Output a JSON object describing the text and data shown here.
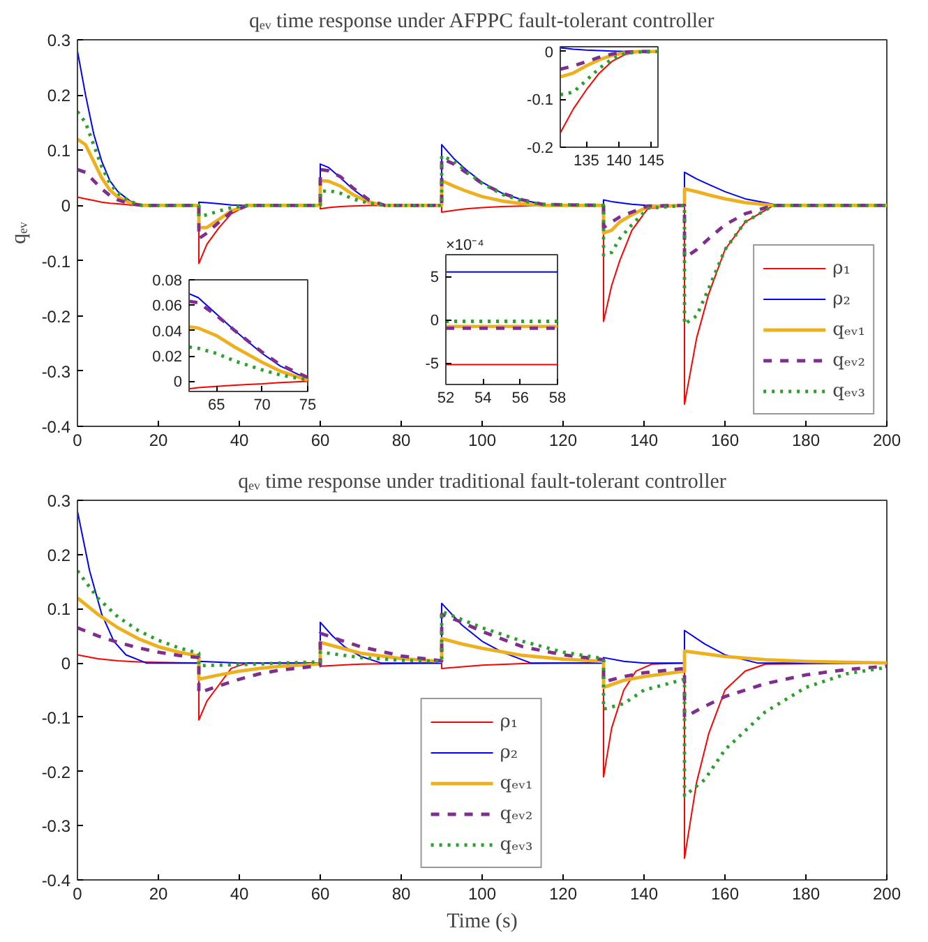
{
  "chart_data": [
    {
      "type": "line",
      "title": "qₑᵥ time response under AFPPC fault-tolerant controller",
      "ylabel": "qₑᵥ",
      "xlim": [
        0,
        200
      ],
      "ylim": [
        -0.4,
        0.3
      ],
      "xticks": [
        0,
        20,
        40,
        60,
        80,
        100,
        120,
        140,
        160,
        180,
        200
      ],
      "yticks": [
        -0.4,
        -0.3,
        -0.2,
        -0.1,
        0,
        0.1,
        0.2,
        0.3
      ],
      "legend": "bottom right",
      "x": [
        0,
        2,
        4,
        6,
        8,
        10,
        13,
        16,
        30,
        30,
        32,
        35,
        38,
        42,
        60,
        60,
        62,
        65,
        68,
        72,
        76,
        90,
        90,
        93,
        96,
        100,
        105,
        110,
        115,
        130,
        130,
        132,
        134,
        137,
        141,
        150,
        150,
        153,
        156,
        160,
        165,
        172,
        200
      ],
      "series": [
        {
          "name": "ρ₁",
          "color": "#ff0000",
          "line_style": "solid",
          "values": [
            0.015,
            0.012,
            0.009,
            0.006,
            0.004,
            0.003,
            0.001,
            0,
            0,
            -0.105,
            -0.07,
            -0.04,
            -0.015,
            0,
            0,
            -0.006,
            -0.004,
            -0.002,
            -0.001,
            0,
            0,
            0,
            -0.012,
            -0.009,
            -0.006,
            -0.004,
            -0.002,
            -0.001,
            0,
            0,
            -0.21,
            -0.145,
            -0.1,
            -0.045,
            -0.005,
            0,
            -0.36,
            -0.24,
            -0.16,
            -0.08,
            -0.03,
            0,
            0
          ]
        },
        {
          "name": "ρ₂",
          "color": "#0000ff",
          "line_style": "solid",
          "values": [
            0.28,
            0.2,
            0.13,
            0.08,
            0.045,
            0.025,
            0.008,
            0,
            0,
            0.006,
            0.005,
            0.003,
            0.001,
            0,
            0,
            0.075,
            0.069,
            0.05,
            0.03,
            0.008,
            0,
            0,
            0.11,
            0.085,
            0.065,
            0.042,
            0.022,
            0.01,
            0.002,
            0,
            0.01,
            0.007,
            0.005,
            0.002,
            0,
            0,
            0.06,
            0.048,
            0.038,
            0.025,
            0.012,
            0.002,
            0
          ]
        },
        {
          "name": "qₑᵥ₁",
          "color": "#edb120",
          "line_style": "solid",
          "values": [
            0.12,
            0.11,
            0.08,
            0.05,
            0.028,
            0.015,
            0.005,
            0,
            0,
            -0.04,
            -0.04,
            -0.025,
            -0.01,
            0,
            0,
            0.045,
            0.044,
            0.035,
            0.02,
            0.006,
            0,
            0,
            0.045,
            0.035,
            0.026,
            0.016,
            0.008,
            0.003,
            0,
            0,
            -0.05,
            -0.045,
            -0.03,
            -0.017,
            -0.002,
            0,
            0.03,
            0.025,
            0.019,
            0.012,
            0.005,
            0,
            0
          ]
        },
        {
          "name": "qₑᵥ₂",
          "color": "#7e2f8e",
          "line_style": "dashed",
          "values": [
            0.065,
            0.06,
            0.045,
            0.03,
            0.018,
            0.01,
            0.003,
            0,
            0,
            -0.06,
            -0.05,
            -0.03,
            -0.012,
            0,
            0,
            0.065,
            0.063,
            0.052,
            0.032,
            0.01,
            0,
            0,
            0.085,
            0.075,
            0.06,
            0.04,
            0.022,
            0.01,
            0.002,
            0,
            -0.04,
            -0.03,
            -0.021,
            -0.012,
            -0.001,
            0,
            -0.095,
            -0.08,
            -0.06,
            -0.035,
            -0.015,
            0,
            0
          ]
        },
        {
          "name": "qₑᵥ₃",
          "color": "#2ca02c",
          "line_style": "dotted",
          "values": [
            0.17,
            0.15,
            0.11,
            0.07,
            0.04,
            0.022,
            0.007,
            0,
            0,
            -0.02,
            -0.017,
            -0.01,
            -0.004,
            0,
            0,
            0.025,
            0.027,
            0.022,
            0.012,
            0.004,
            0,
            0,
            0.09,
            0.08,
            0.062,
            0.04,
            0.02,
            0.008,
            0.002,
            0,
            -0.09,
            -0.085,
            -0.06,
            -0.035,
            -0.005,
            0,
            -0.215,
            -0.2,
            -0.15,
            -0.08,
            -0.03,
            0,
            0
          ]
        }
      ]
    },
    {
      "type": "line",
      "xlim": [
        62,
        75
      ],
      "ylim": [
        -0.008,
        0.08
      ],
      "xticks": [
        65,
        70,
        75
      ],
      "yticks": [
        0,
        0.02,
        0.04,
        0.06,
        0.08
      ],
      "x": [
        62,
        63,
        65,
        67,
        70,
        72,
        75
      ],
      "series": [
        {
          "color": "#ff0000",
          "line_style": "solid",
          "values": [
            -0.006,
            -0.005,
            -0.004,
            -0.003,
            -0.002,
            -0.001,
            0
          ]
        },
        {
          "color": "#0000ff",
          "line_style": "solid",
          "values": [
            0.069,
            0.066,
            0.053,
            0.04,
            0.022,
            0.012,
            0.002
          ]
        },
        {
          "color": "#edb120",
          "line_style": "solid",
          "values": [
            0.043,
            0.042,
            0.036,
            0.027,
            0.015,
            0.008,
            0.001
          ]
        },
        {
          "color": "#7e2f8e",
          "line_style": "dashed",
          "values": [
            0.063,
            0.062,
            0.052,
            0.04,
            0.023,
            0.013,
            0.003
          ]
        },
        {
          "color": "#2ca02c",
          "line_style": "dotted",
          "values": [
            0.027,
            0.026,
            0.022,
            0.016,
            0.009,
            0.005,
            0.001
          ]
        }
      ]
    },
    {
      "type": "line",
      "xlim": [
        52,
        58
      ],
      "ylim": [
        -7.5,
        7.5
      ],
      "xticks": [
        52,
        54,
        56,
        58
      ],
      "yticks": [
        -5,
        0,
        5
      ],
      "annotations": [
        "×10⁻⁴"
      ],
      "x": [
        52,
        58
      ],
      "series": [
        {
          "color": "#ff0000",
          "line_style": "solid",
          "values": [
            -5.2,
            -5.2
          ]
        },
        {
          "color": "#0000ff",
          "line_style": "solid",
          "values": [
            5.5,
            5.5
          ]
        },
        {
          "color": "#edb120",
          "line_style": "solid",
          "values": [
            -0.8,
            -0.8
          ]
        },
        {
          "color": "#7e2f8e",
          "line_style": "dashed",
          "values": [
            -1.0,
            -1.0
          ]
        },
        {
          "color": "#2ca02c",
          "line_style": "dotted",
          "values": [
            -0.2,
            -0.2
          ]
        }
      ]
    },
    {
      "type": "line",
      "xlim": [
        131,
        146
      ],
      "ylim": [
        -0.2,
        0.01
      ],
      "xticks": [
        135,
        140,
        145
      ],
      "yticks": [
        -0.2,
        -0.1,
        0
      ],
      "x": [
        131,
        133,
        135,
        137,
        139,
        141,
        143,
        146
      ],
      "series": [
        {
          "color": "#ff0000",
          "line_style": "solid",
          "values": [
            -0.17,
            -0.12,
            -0.08,
            -0.045,
            -0.02,
            -0.006,
            -0.001,
            0
          ]
        },
        {
          "color": "#0000ff",
          "line_style": "solid",
          "values": [
            0.008,
            0.005,
            0.003,
            0.002,
            0.001,
            0,
            0,
            0
          ]
        },
        {
          "color": "#edb120",
          "line_style": "solid",
          "values": [
            -0.053,
            -0.045,
            -0.03,
            -0.017,
            -0.008,
            -0.002,
            0,
            0
          ]
        },
        {
          "color": "#7e2f8e",
          "line_style": "dashed",
          "values": [
            -0.037,
            -0.03,
            -0.021,
            -0.012,
            -0.005,
            -0.001,
            0,
            0
          ]
        },
        {
          "color": "#2ca02c",
          "line_style": "dotted",
          "values": [
            -0.09,
            -0.085,
            -0.06,
            -0.035,
            -0.015,
            -0.004,
            -0.001,
            0
          ]
        }
      ]
    },
    {
      "type": "line",
      "title": "qₑᵥ time response under traditional fault-tolerant controller",
      "xlabel": "Time (s)",
      "xlim": [
        0,
        200
      ],
      "ylim": [
        -0.4,
        0.3
      ],
      "xticks": [
        0,
        20,
        40,
        60,
        80,
        100,
        120,
        140,
        160,
        180,
        200
      ],
      "yticks": [
        -0.4,
        -0.3,
        -0.2,
        -0.1,
        0,
        0.1,
        0.2,
        0.3
      ],
      "legend": "bottom",
      "series": [
        {
          "name": "ρ₁",
          "color": "#ff0000",
          "line_style": "solid",
          "x": [
            0,
            5,
            10,
            15,
            20,
            30,
            30,
            32,
            35,
            38,
            42,
            60,
            60,
            70,
            80,
            90,
            90,
            100,
            110,
            120,
            130,
            130,
            132,
            135,
            138,
            142,
            150,
            150,
            153,
            156,
            160,
            165,
            170,
            200
          ],
          "values": [
            0.015,
            0.008,
            0.004,
            0.002,
            0.001,
            0,
            -0.105,
            -0.07,
            -0.04,
            -0.01,
            0,
            0,
            -0.006,
            -0.002,
            -0.001,
            0,
            -0.01,
            -0.004,
            -0.001,
            0,
            0,
            -0.21,
            -0.12,
            -0.05,
            -0.015,
            -0.002,
            0,
            -0.36,
            -0.22,
            -0.13,
            -0.05,
            -0.015,
            -0.002,
            0
          ]
        },
        {
          "name": "ρ₂",
          "color": "#0000ff",
          "line_style": "solid",
          "x": [
            0,
            3,
            6,
            9,
            12,
            17,
            30,
            30,
            40,
            60,
            60,
            63,
            66,
            70,
            75,
            90,
            90,
            95,
            100,
            105,
            112,
            130,
            130,
            135,
            140,
            150,
            150,
            155,
            160,
            168,
            200
          ],
          "values": [
            0.28,
            0.17,
            0.09,
            0.04,
            0.015,
            0,
            0,
            0.003,
            0,
            0,
            0.075,
            0.05,
            0.03,
            0.012,
            0,
            0,
            0.11,
            0.07,
            0.04,
            0.02,
            0,
            0,
            0.01,
            0.003,
            0,
            0,
            0.06,
            0.035,
            0.015,
            0,
            0
          ]
        },
        {
          "name": "qₑᵥ₁",
          "color": "#edb120",
          "line_style": "solid",
          "x": [
            0,
            5,
            10,
            15,
            20,
            25,
            30,
            30,
            35,
            40,
            45,
            50,
            60,
            60,
            65,
            70,
            80,
            90,
            90,
            95,
            100,
            110,
            120,
            130,
            130,
            135,
            140,
            150,
            150,
            160,
            170,
            180,
            200
          ],
          "values": [
            0.12,
            0.09,
            0.065,
            0.045,
            0.03,
            0.02,
            0.013,
            -0.03,
            -0.022,
            -0.015,
            -0.01,
            -0.006,
            -0.002,
            0.038,
            0.028,
            0.018,
            0.008,
            0.003,
            0.045,
            0.035,
            0.027,
            0.014,
            0.007,
            0.003,
            -0.045,
            -0.032,
            -0.025,
            -0.015,
            0.022,
            0.012,
            0.006,
            0.003,
            0
          ]
        },
        {
          "name": "qₑᵥ₂",
          "color": "#7e2f8e",
          "line_style": "dashed",
          "x": [
            0,
            5,
            10,
            15,
            20,
            25,
            30,
            30,
            35,
            40,
            45,
            50,
            60,
            60,
            65,
            70,
            80,
            90,
            90,
            95,
            100,
            110,
            120,
            130,
            130,
            135,
            140,
            150,
            150,
            155,
            160,
            170,
            180,
            190,
            200
          ],
          "values": [
            0.065,
            0.05,
            0.038,
            0.028,
            0.02,
            0.014,
            0.01,
            -0.055,
            -0.042,
            -0.03,
            -0.02,
            -0.013,
            -0.005,
            0.055,
            0.042,
            0.03,
            0.013,
            0.004,
            0.09,
            0.075,
            0.058,
            0.03,
            0.015,
            0.006,
            -0.035,
            -0.025,
            -0.018,
            -0.01,
            -0.1,
            -0.08,
            -0.062,
            -0.038,
            -0.022,
            -0.012,
            -0.006
          ]
        },
        {
          "name": "qₑᵥ₃",
          "color": "#2ca02c",
          "line_style": "dotted",
          "x": [
            0,
            5,
            10,
            15,
            20,
            25,
            30,
            30,
            35,
            40,
            45,
            50,
            60,
            60,
            65,
            70,
            80,
            90,
            90,
            95,
            100,
            110,
            120,
            130,
            130,
            135,
            140,
            150,
            150,
            155,
            160,
            170,
            180,
            190,
            200
          ],
          "values": [
            0.17,
            0.12,
            0.085,
            0.06,
            0.042,
            0.028,
            0.018,
            -0.005,
            -0.004,
            -0.003,
            -0.002,
            0,
            0.002,
            0.02,
            0.015,
            0.01,
            0.005,
            0.003,
            0.095,
            0.08,
            0.065,
            0.04,
            0.02,
            0.008,
            -0.085,
            -0.075,
            -0.05,
            -0.03,
            -0.245,
            -0.215,
            -0.16,
            -0.09,
            -0.045,
            -0.02,
            -0.008
          ]
        }
      ]
    }
  ]
}
